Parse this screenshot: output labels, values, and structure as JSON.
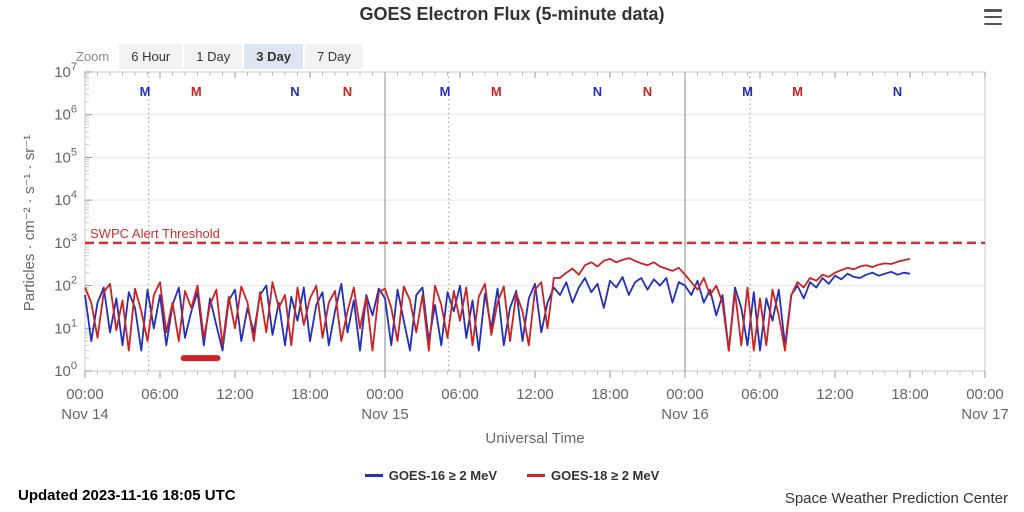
{
  "header": {
    "title": "GOES Electron Flux (5-minute data)"
  },
  "toolbar": {
    "zoom_label": "Zoom",
    "options": [
      "6 Hour",
      "1 Day",
      "3 Day",
      "7 Day"
    ],
    "selected": "3 Day"
  },
  "chart_data": {
    "type": "line",
    "title": "GOES Electron Flux (5-minute data)",
    "xlabel": "Universal Time",
    "ylabel": "Particles · cm⁻² · s⁻¹ · sr⁻¹",
    "x_start": "2023-11-14 00:00 UTC",
    "x_span_hours": 72,
    "x_major_tick_hours": 6,
    "x_minor_tick_hours": 1,
    "x_tick_labels": [
      "00:00",
      "06:00",
      "12:00",
      "18:00",
      "00:00",
      "06:00",
      "12:00",
      "18:00",
      "00:00",
      "06:00",
      "12:00",
      "18:00",
      "00:00"
    ],
    "x_day_labels": [
      {
        "hour": 0,
        "label": "Nov 14"
      },
      {
        "hour": 24,
        "label": "Nov 15"
      },
      {
        "hour": 48,
        "label": "Nov 16"
      },
      {
        "hour": 72,
        "label": "Nov 17"
      }
    ],
    "y_scale": "log",
    "ylim": [
      1,
      10000000
    ],
    "y_tick_exponents": [
      0,
      1,
      2,
      3,
      4,
      5,
      6,
      7
    ],
    "grid": true,
    "day_separator_hours": [
      24,
      48
    ],
    "satellite_midnight_dotted_hours": [
      5.1,
      29.1,
      53.2
    ],
    "event_markers": [
      {
        "hour": 4.8,
        "label": "M",
        "satellite": "GOES-16",
        "color": "#2230bb"
      },
      {
        "hour": 8.9,
        "label": "M",
        "satellite": "GOES-18",
        "color": "#cc2222"
      },
      {
        "hour": 16.8,
        "label": "N",
        "satellite": "GOES-16",
        "color": "#2230bb"
      },
      {
        "hour": 21.0,
        "label": "N",
        "satellite": "GOES-18",
        "color": "#cc2222"
      },
      {
        "hour": 28.8,
        "label": "M",
        "satellite": "GOES-16",
        "color": "#2230bb"
      },
      {
        "hour": 32.9,
        "label": "M",
        "satellite": "GOES-18",
        "color": "#cc2222"
      },
      {
        "hour": 41.0,
        "label": "N",
        "satellite": "GOES-16",
        "color": "#2230bb"
      },
      {
        "hour": 45.0,
        "label": "N",
        "satellite": "GOES-18",
        "color": "#cc2222"
      },
      {
        "hour": 53.0,
        "label": "M",
        "satellite": "GOES-16",
        "color": "#2230bb"
      },
      {
        "hour": 57.0,
        "label": "M",
        "satellite": "GOES-18",
        "color": "#cc2222"
      },
      {
        "hour": 65.0,
        "label": "N",
        "satellite": "GOES-16",
        "color": "#2230bb"
      }
    ],
    "threshold": {
      "label": "SWPC Alert Threshold",
      "value": 1000,
      "color": "#cc3333"
    },
    "series": [
      {
        "name": "GOES-16 ≥ 2 MeV",
        "color": "#2230bb",
        "t0": 0,
        "dt": 0.5,
        "values": [
          60,
          5,
          40,
          90,
          8,
          50,
          4,
          70,
          30,
          3,
          80,
          10,
          60,
          4,
          35,
          90,
          6,
          25,
          70,
          4,
          50,
          12,
          3,
          45,
          80,
          5,
          30,
          8,
          60,
          100,
          7,
          40,
          4,
          55,
          15,
          90,
          5,
          35,
          70,
          4,
          25,
          110,
          8,
          45,
          3,
          60,
          20,
          85,
          50,
          4,
          80,
          15,
          3,
          60,
          90,
          5,
          35,
          4,
          70,
          25,
          100,
          6,
          45,
          3,
          65,
          10,
          85,
          4,
          30,
          75,
          5,
          50,
          110,
          8,
          40,
          90,
          60,
          120,
          40,
          90,
          150,
          70,
          110,
          30,
          130,
          90,
          160,
          60,
          120,
          150,
          80,
          140,
          100,
          150,
          40,
          120,
          100,
          60,
          130,
          40,
          80,
          20,
          60,
          3,
          90,
          30,
          4,
          70,
          3,
          50,
          15,
          80,
          4,
          60,
          100,
          50,
          120,
          90,
          150,
          110,
          170,
          140,
          190,
          160,
          150,
          180,
          200,
          170,
          190,
          210,
          180,
          200,
          190
        ]
      },
      {
        "name": "GOES-18 ≥ 2 MeV",
        "color": "#cc2222",
        "t0": 0,
        "dt": 0.5,
        "values": [
          90,
          40,
          6,
          70,
          110,
          9,
          45,
          3,
          85,
          25,
          5,
          60,
          120,
          8,
          40,
          5,
          75,
          30,
          100,
          6,
          35,
          80,
          4,
          55,
          10,
          95,
          40,
          5,
          70,
          8,
          120,
          30,
          60,
          4,
          90,
          12,
          50,
          100,
          6,
          40,
          75,
          5,
          25,
          90,
          10,
          55,
          3,
          70,
          85,
          30,
          5,
          95,
          45,
          8,
          60,
          3,
          100,
          35,
          6,
          75,
          15,
          90,
          4,
          55,
          110,
          7,
          40,
          95,
          5,
          65,
          25,
          4,
          80,
          120,
          10,
          150,
          150,
          200,
          250,
          180,
          300,
          350,
          280,
          380,
          420,
          350,
          400,
          440,
          380,
          330,
          300,
          350,
          280,
          250,
          220,
          260,
          180,
          120,
          80,
          150,
          60,
          100,
          40,
          3,
          70,
          4,
          90,
          3,
          50,
          4,
          80,
          20,
          3,
          60,
          120,
          90,
          150,
          130,
          180,
          160,
          200,
          230,
          260,
          240,
          280,
          300,
          270,
          310,
          330,
          320,
          360,
          390,
          420
        ]
      }
    ],
    "flatline_segment": {
      "series": "GOES-18 ≥ 2 MeV",
      "from_hour": 7.9,
      "to_hour": 10.6,
      "value": 2
    }
  },
  "legend": {
    "items": [
      {
        "label": "GOES-16 ≥ 2 MeV",
        "color": "#2230bb"
      },
      {
        "label": "GOES-18 ≥ 2 MeV",
        "color": "#cc2222"
      }
    ]
  },
  "footer": {
    "updated": "Updated 2023-11-16 18:05 UTC",
    "credit": "Space Weather Prediction Center"
  }
}
